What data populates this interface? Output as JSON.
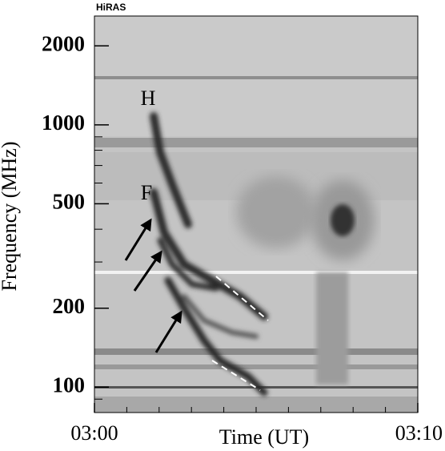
{
  "chart_data": {
    "type": "spectrogram",
    "instrument": "HiRAS",
    "xlabel": "Time (UT)",
    "ylabel": "Frequency (MHz)",
    "annotations": [
      "H",
      "F"
    ],
    "xlim": [
      0,
      10
    ],
    "xticks": [
      {
        "value": 0,
        "label": "03:00"
      },
      {
        "value": 10,
        "label": "03:10"
      }
    ],
    "xticks_minor": [
      1,
      2,
      3,
      4,
      5,
      6,
      7,
      8,
      9
    ],
    "ylim": [
      80,
      2600
    ],
    "yticks": [
      100,
      200,
      500,
      1000,
      2000
    ],
    "yticks_minor": [
      90,
      300,
      400,
      600,
      700,
      800,
      900
    ],
    "log_y": true
  }
}
